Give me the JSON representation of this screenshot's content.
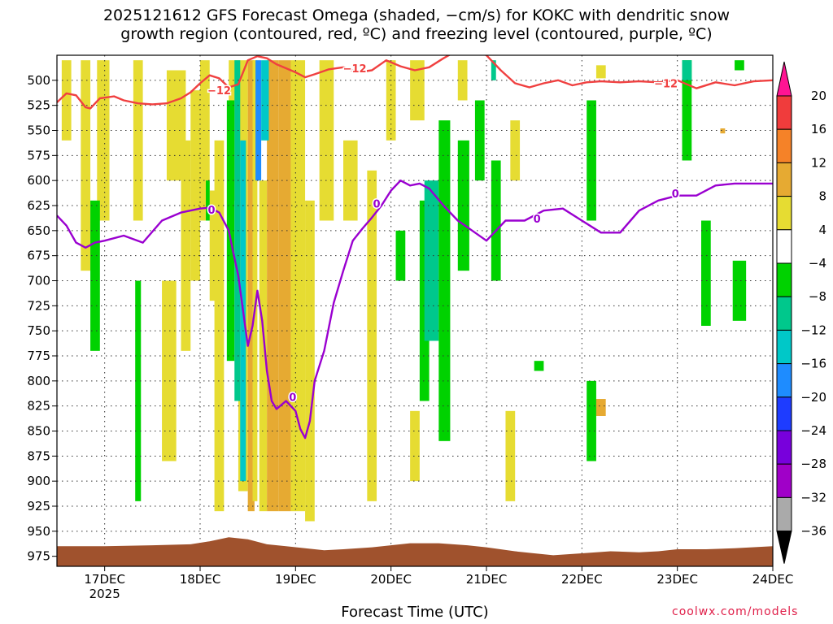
{
  "chart_data": {
    "type": "heatmap",
    "title_lines": [
      "2025121612 GFS Forecast Omega (shaded, −cm/s) for KOKC with dendritic snow",
      "growth region (contoured, red, ºC) and freezing level (contoured, purple, ºC)"
    ],
    "xlabel": "Forecast Time (UTC)",
    "x_ticks": [
      "17DEC",
      "18DEC",
      "19DEC",
      "20DEC",
      "21DEC",
      "22DEC",
      "23DEC",
      "24DEC"
    ],
    "x_year_label": "2025",
    "y_ticks": [
      500,
      525,
      550,
      575,
      600,
      625,
      650,
      675,
      700,
      725,
      750,
      775,
      800,
      825,
      850,
      875,
      900,
      925,
      950,
      975
    ],
    "ylim": [
      475,
      985
    ],
    "xlim": [
      16.5,
      24.0
    ],
    "grid": true,
    "colorbar": {
      "labels": [
        "20",
        "16",
        "12",
        "8",
        "4",
        "−4",
        "−8",
        "−12",
        "−16",
        "−20",
        "−24",
        "−28",
        "−32",
        "−36"
      ],
      "colors": [
        "#ff1493",
        "#f03c3c",
        "#f58228",
        "#e6aa32",
        "#e6dc32",
        "#ffffff",
        "#00d200",
        "#00c88c",
        "#00c8c8",
        "#1e8cff",
        "#1e3cff",
        "#7800dc",
        "#a000c8",
        "#aaaaaa",
        "#000000"
      ]
    },
    "contours": {
      "dgz": {
        "color": "#f04040",
        "label": "−12",
        "x": [
          16.5,
          16.6,
          16.7,
          16.8,
          16.85,
          16.95,
          17.1,
          17.2,
          17.35,
          17.5,
          17.65,
          17.8,
          17.9,
          18.0,
          18.1,
          18.2,
          18.3,
          18.4,
          18.5,
          18.6,
          18.7,
          18.8,
          18.9,
          19.0,
          19.1,
          19.2,
          19.35,
          19.5,
          19.65,
          19.8,
          19.95,
          20.1,
          20.25,
          20.4,
          20.55,
          20.7,
          20.85,
          21.0,
          21.15,
          21.3,
          21.45,
          21.6,
          21.75,
          21.9,
          22.05,
          22.2,
          22.4,
          22.6,
          22.8,
          23.0,
          23.2,
          23.4,
          23.6,
          23.8,
          24.0
        ],
        "p": [
          522,
          513,
          515,
          527,
          528,
          518,
          516,
          520,
          523,
          524,
          523,
          518,
          512,
          503,
          495,
          498,
          507,
          504,
          480,
          476,
          478,
          484,
          488,
          492,
          497,
          494,
          489,
          487,
          492,
          490,
          480,
          486,
          490,
          487,
          478,
          470,
          468,
          475,
          490,
          503,
          507,
          503,
          500,
          505,
          502,
          501,
          502,
          501,
          502,
          500,
          508,
          502,
          505,
          501,
          500
        ]
      },
      "freezing": {
        "color": "#9a00d0",
        "label": "0",
        "x": [
          16.5,
          16.6,
          16.7,
          16.8,
          16.9,
          17.0,
          17.2,
          17.4,
          17.6,
          17.8,
          18.0,
          18.1,
          18.2,
          18.3,
          18.35,
          18.4,
          18.45,
          18.5,
          18.55,
          18.6,
          18.65,
          18.7,
          18.75,
          18.8,
          18.9,
          19.0,
          19.05,
          19.1,
          19.15,
          19.2,
          19.3,
          19.4,
          19.5,
          19.6,
          19.7,
          19.8,
          19.9,
          20.0,
          20.1,
          20.2,
          20.3,
          20.4,
          20.55,
          20.7,
          20.85,
          21.0,
          21.2,
          21.4,
          21.6,
          21.8,
          22.0,
          22.2,
          22.4,
          22.6,
          22.8,
          23.0,
          23.2,
          23.4,
          23.6,
          23.8,
          24.0
        ],
        "p": [
          635,
          645,
          662,
          667,
          662,
          660,
          655,
          662,
          640,
          632,
          628,
          627,
          632,
          650,
          673,
          695,
          730,
          765,
          745,
          710,
          740,
          790,
          820,
          828,
          820,
          830,
          848,
          857,
          840,
          800,
          770,
          722,
          690,
          660,
          648,
          637,
          625,
          610,
          600,
          605,
          603,
          608,
          625,
          640,
          650,
          660,
          640,
          640,
          630,
          628,
          640,
          652,
          652,
          630,
          620,
          615,
          615,
          605,
          603,
          603,
          603
        ]
      }
    },
    "omega_cells": [
      {
        "x0": 16.55,
        "x1": 16.65,
        "p0": 480,
        "p1": 560,
        "v": 4
      },
      {
        "x0": 16.75,
        "x1": 16.85,
        "p0": 480,
        "p1": 690,
        "v": 4
      },
      {
        "x0": 16.92,
        "x1": 17.05,
        "p0": 480,
        "p1": 640,
        "v": 4
      },
      {
        "x0": 17.3,
        "x1": 17.4,
        "p0": 480,
        "p1": 640,
        "v": 4
      },
      {
        "x0": 17.65,
        "x1": 17.85,
        "p0": 490,
        "p1": 600,
        "v": 4
      },
      {
        "x0": 17.6,
        "x1": 17.75,
        "p0": 700,
        "p1": 880,
        "v": 4
      },
      {
        "x0": 17.8,
        "x1": 17.9,
        "p0": 560,
        "p1": 770,
        "v": 4
      },
      {
        "x0": 17.9,
        "x1": 18.0,
        "p0": 510,
        "p1": 700,
        "v": 4
      },
      {
        "x0": 18.0,
        "x1": 18.1,
        "p0": 480,
        "p1": 640,
        "v": 4
      },
      {
        "x0": 18.1,
        "x1": 18.2,
        "p0": 610,
        "p1": 720,
        "v": 4
      },
      {
        "x0": 18.15,
        "x1": 18.25,
        "p0": 560,
        "p1": 930,
        "v": 4
      },
      {
        "x0": 18.3,
        "x1": 18.4,
        "p0": 480,
        "p1": 620,
        "v": 4
      },
      {
        "x0": 18.4,
        "x1": 18.5,
        "p0": 480,
        "p1": 910,
        "v": 4
      },
      {
        "x0": 18.5,
        "x1": 18.57,
        "p0": 480,
        "p1": 930,
        "v": 8
      },
      {
        "x0": 18.55,
        "x1": 18.6,
        "p0": 480,
        "p1": 920,
        "v": 4
      },
      {
        "x0": 18.62,
        "x1": 18.7,
        "p0": 600,
        "p1": 930,
        "v": 4
      },
      {
        "x0": 18.7,
        "x1": 18.82,
        "p0": 480,
        "p1": 930,
        "v": 8
      },
      {
        "x0": 18.82,
        "x1": 18.95,
        "p0": 480,
        "p1": 930,
        "v": 8
      },
      {
        "x0": 18.95,
        "x1": 19.1,
        "p0": 480,
        "p1": 930,
        "v": 4
      },
      {
        "x0": 19.1,
        "x1": 19.2,
        "p0": 620,
        "p1": 940,
        "v": 4
      },
      {
        "x0": 19.25,
        "x1": 19.4,
        "p0": 480,
        "p1": 640,
        "v": 4
      },
      {
        "x0": 19.5,
        "x1": 19.65,
        "p0": 560,
        "p1": 640,
        "v": 4
      },
      {
        "x0": 19.75,
        "x1": 19.85,
        "p0": 590,
        "p1": 920,
        "v": 4
      },
      {
        "x0": 19.95,
        "x1": 20.05,
        "p0": 480,
        "p1": 560,
        "v": 4
      },
      {
        "x0": 20.2,
        "x1": 20.35,
        "p0": 480,
        "p1": 540,
        "v": 4
      },
      {
        "x0": 20.2,
        "x1": 20.3,
        "p0": 830,
        "p1": 900,
        "v": 4
      },
      {
        "x0": 20.7,
        "x1": 20.8,
        "p0": 480,
        "p1": 520,
        "v": 4
      },
      {
        "x0": 21.25,
        "x1": 21.35,
        "p0": 540,
        "p1": 600,
        "v": 4
      },
      {
        "x0": 21.2,
        "x1": 21.3,
        "p0": 830,
        "p1": 920,
        "v": 4
      },
      {
        "x0": 22.15,
        "x1": 22.25,
        "p0": 485,
        "p1": 498,
        "v": 4
      },
      {
        "x0": 22.15,
        "x1": 22.25,
        "p0": 818,
        "p1": 835,
        "v": 8
      },
      {
        "x0": 23.45,
        "x1": 23.5,
        "p0": 548,
        "p1": 553,
        "v": 8
      },
      {
        "x0": 18.28,
        "x1": 18.36,
        "p0": 520,
        "p1": 780,
        "v": -8
      },
      {
        "x0": 18.36,
        "x1": 18.42,
        "p0": 480,
        "p1": 820,
        "v": -12
      },
      {
        "x0": 18.42,
        "x1": 18.48,
        "p0": 560,
        "p1": 900,
        "v": -16
      },
      {
        "x0": 18.58,
        "x1": 18.64,
        "p0": 480,
        "p1": 600,
        "v": -20
      },
      {
        "x0": 18.64,
        "x1": 18.72,
        "p0": 480,
        "p1": 560,
        "v": -16
      },
      {
        "x0": 18.06,
        "x1": 18.1,
        "p0": 600,
        "p1": 640,
        "v": -8
      },
      {
        "x0": 17.32,
        "x1": 17.38,
        "p0": 700,
        "p1": 920,
        "v": -8
      },
      {
        "x0": 16.85,
        "x1": 16.95,
        "p0": 620,
        "p1": 770,
        "v": -8
      },
      {
        "x0": 20.3,
        "x1": 20.4,
        "p0": 620,
        "p1": 820,
        "v": -8
      },
      {
        "x0": 20.35,
        "x1": 20.5,
        "p0": 600,
        "p1": 760,
        "v": -12
      },
      {
        "x0": 20.5,
        "x1": 20.62,
        "p0": 540,
        "p1": 860,
        "v": -8
      },
      {
        "x0": 20.7,
        "x1": 20.82,
        "p0": 560,
        "p1": 690,
        "v": -8
      },
      {
        "x0": 20.88,
        "x1": 20.98,
        "p0": 520,
        "p1": 600,
        "v": -8
      },
      {
        "x0": 21.05,
        "x1": 21.15,
        "p0": 580,
        "p1": 700,
        "v": -8
      },
      {
        "x0": 20.05,
        "x1": 20.15,
        "p0": 650,
        "p1": 700,
        "v": -8
      },
      {
        "x0": 21.5,
        "x1": 21.6,
        "p0": 780,
        "p1": 790,
        "v": -8
      },
      {
        "x0": 22.05,
        "x1": 22.15,
        "p0": 520,
        "p1": 640,
        "v": -8
      },
      {
        "x0": 22.05,
        "x1": 22.15,
        "p0": 800,
        "p1": 880,
        "v": -8
      },
      {
        "x0": 23.05,
        "x1": 23.15,
        "p0": 480,
        "p1": 580,
        "v": -8
      },
      {
        "x0": 23.05,
        "x1": 23.15,
        "p0": 480,
        "p1": 500,
        "v": -12
      },
      {
        "x0": 23.25,
        "x1": 23.35,
        "p0": 640,
        "p1": 745,
        "v": -8
      },
      {
        "x0": 23.58,
        "x1": 23.72,
        "p0": 680,
        "p1": 740,
        "v": -8
      },
      {
        "x0": 23.6,
        "x1": 23.7,
        "p0": 480,
        "p1": 490,
        "v": -8
      },
      {
        "x0": 21.05,
        "x1": 21.1,
        "p0": 480,
        "p1": 500,
        "v": -12
      }
    ],
    "terrain": {
      "color": "#a0522d",
      "x": [
        16.5,
        17.0,
        17.5,
        17.9,
        18.1,
        18.3,
        18.5,
        18.7,
        18.9,
        19.1,
        19.3,
        19.5,
        19.8,
        20.0,
        20.2,
        20.5,
        20.8,
        21.0,
        21.3,
        21.5,
        21.7,
        22.0,
        22.3,
        22.6,
        22.8,
        23.0,
        23.3,
        23.6,
        24.0
      ],
      "p": [
        965,
        965,
        964,
        963,
        960,
        956,
        958,
        963,
        965,
        967,
        969,
        968,
        966,
        964,
        962,
        962,
        964,
        966,
        970,
        972,
        974,
        972,
        970,
        971,
        970,
        968,
        968,
        967,
        965
      ]
    }
  },
  "credit": "coolwx.com/models"
}
